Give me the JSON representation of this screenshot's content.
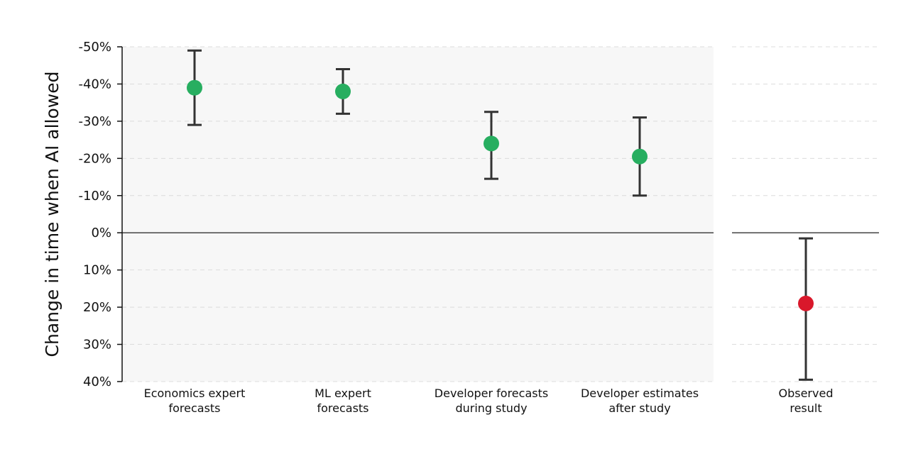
{
  "chart_data": {
    "type": "scatter",
    "ylabel": "Change in time when AI allowed",
    "y_ticks": [
      "-50%",
      "-40%",
      "-30%",
      "-20%",
      "-10%",
      "0%",
      "10%",
      "20%",
      "30%",
      "40%"
    ],
    "ylim": [
      -50,
      40
    ],
    "y_inverted": true,
    "grid": true,
    "panels": [
      {
        "name": "forecasts",
        "background": "#f7f7f7",
        "categories": [
          "Economics expert\nforecasts",
          "ML expert\nforecasts",
          "Developer forecasts\nduring study",
          "Developer estimates\nafter study"
        ],
        "points": [
          {
            "y": -39,
            "low": -49,
            "high": -29
          },
          {
            "y": -38,
            "low": -44,
            "high": -32
          },
          {
            "y": -24,
            "low": -32.5,
            "high": -14.5
          },
          {
            "y": -20.5,
            "low": -31,
            "high": -10
          }
        ],
        "color": "#27ae60"
      },
      {
        "name": "observed",
        "background": "#ffffff",
        "categories": [
          "Observed\nresult"
        ],
        "points": [
          {
            "y": 19,
            "low": 1.5,
            "high": 39.5
          }
        ],
        "color": "#d9182b"
      }
    ]
  }
}
